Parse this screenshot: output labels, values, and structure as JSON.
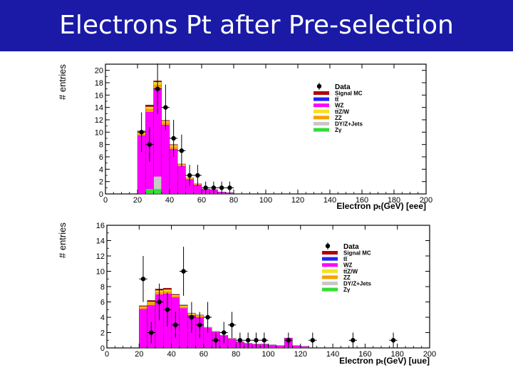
{
  "slide": {
    "title": "Electrons Pt after Pre-selection",
    "title_bg": "#1a1aa6"
  },
  "legend_entries": [
    {
      "label": "Signal MC",
      "color": "#b00000"
    },
    {
      "label": "tt̅",
      "color": "#2222ff"
    },
    {
      "label": "WZ",
      "color": "#ff00ff"
    },
    {
      "label": "tt̅Z/W",
      "color": "#f5e11e"
    },
    {
      "label": "ZZ",
      "color": "#f5a000"
    },
    {
      "label": "DY/Z+Jets",
      "color": "#c8c8c8"
    },
    {
      "label": "Zγ",
      "color": "#33dd33"
    }
  ],
  "chart_data": [
    {
      "type": "bar",
      "stacked": true,
      "ylabel": "# entries",
      "xlabel": "Electron pₜ(GeV) [eee]",
      "xlim": [
        0,
        200
      ],
      "ylim": [
        0,
        21
      ],
      "xticks": [
        0,
        20,
        40,
        60,
        80,
        100,
        120,
        140,
        160,
        180,
        200
      ],
      "yticks": [
        0,
        2,
        4,
        6,
        8,
        10,
        12,
        14,
        16,
        18,
        20
      ],
      "bin_width": 5,
      "bin_starts": [
        20,
        25,
        30,
        35,
        40,
        45,
        50,
        55,
        60,
        65,
        70,
        75,
        80
      ],
      "series": [
        {
          "name": "Zγ",
          "values": [
            0,
            0.8,
            0.8,
            0,
            0,
            0,
            0,
            0,
            0,
            0,
            0,
            0,
            0
          ]
        },
        {
          "name": "DY/Z+Jets",
          "values": [
            0,
            0,
            2,
            0,
            0,
            0,
            0,
            0,
            0,
            0,
            0,
            0,
            0
          ]
        },
        {
          "name": "WZ",
          "values": [
            9.5,
            12.5,
            14.3,
            11.2,
            7.3,
            4.5,
            2.4,
            1.5,
            0.8,
            0.7,
            0.3,
            0.2,
            0.05
          ]
        },
        {
          "name": "ZZ",
          "values": [
            0.3,
            0.5,
            0.6,
            0.4,
            0.4,
            0.2,
            0.1,
            0.1,
            0,
            0,
            0,
            0,
            0
          ]
        },
        {
          "name": "tt̅Z/W",
          "values": [
            0.3,
            0.3,
            0.4,
            0.2,
            0.2,
            0.1,
            0.1,
            0.05,
            0,
            0,
            0,
            0,
            0
          ]
        },
        {
          "name": "tt̅",
          "values": [
            0,
            0,
            0,
            0,
            0,
            0,
            0,
            0,
            0,
            0,
            0,
            0,
            0
          ]
        },
        {
          "name": "Signal MC",
          "values": [
            0.1,
            0.3,
            0.2,
            0.1,
            0.1,
            0.05,
            0,
            0,
            0,
            0,
            0,
            0,
            0
          ]
        }
      ],
      "data_points": [
        {
          "x": 22.5,
          "y": 10,
          "err": 3.2
        },
        {
          "x": 27.5,
          "y": 8,
          "err": 2.8
        },
        {
          "x": 32.5,
          "y": 17,
          "err": 4.1
        },
        {
          "x": 37.5,
          "y": 14,
          "err": 3.7
        },
        {
          "x": 42.5,
          "y": 9,
          "err": 3.0
        },
        {
          "x": 47.5,
          "y": 7,
          "err": 2.6
        },
        {
          "x": 52.5,
          "y": 3,
          "err": 1.7
        },
        {
          "x": 57.5,
          "y": 3,
          "err": 1.7
        },
        {
          "x": 62.5,
          "y": 1,
          "err": 1.0
        },
        {
          "x": 67.5,
          "y": 1,
          "err": 1.0
        },
        {
          "x": 72.5,
          "y": 1,
          "err": 1.0
        },
        {
          "x": 77.5,
          "y": 1,
          "err": 1.0
        }
      ]
    },
    {
      "type": "bar",
      "stacked": true,
      "ylabel": "# entries",
      "xlabel": "Electron pₜ(GeV) [uue]",
      "xlim": [
        0,
        200
      ],
      "ylim": [
        0,
        16
      ],
      "xticks": [
        0,
        20,
        40,
        60,
        80,
        100,
        120,
        140,
        160,
        180,
        200
      ],
      "yticks": [
        0,
        2,
        4,
        6,
        8,
        10,
        12,
        14,
        16
      ],
      "bin_width": 5,
      "bin_starts": [
        20,
        25,
        30,
        35,
        40,
        45,
        50,
        55,
        60,
        65,
        70,
        75,
        80,
        85,
        90,
        95,
        100,
        105,
        110,
        115,
        120
      ],
      "series": [
        {
          "name": "Zγ",
          "values": [
            0,
            0,
            0,
            0,
            0,
            0,
            0,
            0,
            0,
            0,
            0,
            0,
            0,
            0,
            0,
            0,
            0,
            0,
            0,
            0,
            0
          ]
        },
        {
          "name": "DY/Z+Jets",
          "values": [
            0,
            0,
            0,
            0,
            0,
            0,
            0,
            0,
            0,
            0,
            0,
            0,
            0,
            0,
            0,
            0,
            0,
            0,
            0,
            0,
            0
          ]
        },
        {
          "name": "WZ",
          "values": [
            5.1,
            5.6,
            7.0,
            7.1,
            6.6,
            5.2,
            4.3,
            4.0,
            2.6,
            2.1,
            1.6,
            1.2,
            0.8,
            0.6,
            0.5,
            0.5,
            0.4,
            0.3,
            1.3,
            0.3,
            0.2
          ]
        },
        {
          "name": "ZZ",
          "values": [
            0.2,
            0.3,
            0.3,
            0.3,
            0.2,
            0.2,
            0.1,
            0.2,
            0.1,
            0.05,
            0.05,
            0.05,
            0,
            0,
            0,
            0,
            0,
            0,
            0,
            0,
            0
          ]
        },
        {
          "name": "tt̅Z/W",
          "values": [
            0.1,
            0.1,
            0.2,
            0.2,
            0.1,
            0.1,
            0.1,
            0.05,
            0,
            0,
            0,
            0,
            0,
            0,
            0,
            0,
            0,
            0,
            0,
            0,
            0
          ]
        },
        {
          "name": "tt̅",
          "values": [
            0,
            0,
            0,
            0,
            0,
            0,
            0,
            0,
            0,
            0,
            0,
            0,
            0,
            0,
            0,
            0,
            0,
            0,
            0,
            0,
            0
          ]
        },
        {
          "name": "Signal MC",
          "values": [
            0.1,
            0.2,
            0.2,
            0.2,
            0.1,
            0.1,
            0.05,
            0.05,
            0,
            0,
            0,
            0,
            0,
            0,
            0,
            0,
            0,
            0,
            0,
            0,
            0
          ]
        }
      ],
      "data_points": [
        {
          "x": 22.5,
          "y": 9,
          "err": 3.0
        },
        {
          "x": 27.5,
          "y": 2,
          "err": 1.4
        },
        {
          "x": 32.5,
          "y": 6,
          "err": 2.4
        },
        {
          "x": 37.5,
          "y": 5,
          "err": 2.2
        },
        {
          "x": 42.5,
          "y": 3,
          "err": 1.7
        },
        {
          "x": 47.5,
          "y": 10,
          "err": 3.2
        },
        {
          "x": 52.5,
          "y": 4,
          "err": 2.0
        },
        {
          "x": 57.5,
          "y": 3,
          "err": 1.7
        },
        {
          "x": 62.5,
          "y": 4,
          "err": 2.0
        },
        {
          "x": 67.5,
          "y": 1,
          "err": 1.0
        },
        {
          "x": 72.5,
          "y": 2,
          "err": 1.4
        },
        {
          "x": 77.5,
          "y": 3,
          "err": 1.7
        },
        {
          "x": 82.5,
          "y": 1,
          "err": 1.0
        },
        {
          "x": 87.5,
          "y": 1,
          "err": 1.0
        },
        {
          "x": 92.5,
          "y": 1,
          "err": 1.0
        },
        {
          "x": 97.5,
          "y": 1,
          "err": 1.0
        },
        {
          "x": 112.5,
          "y": 1,
          "err": 1.0
        },
        {
          "x": 127.5,
          "y": 1,
          "err": 1.0
        },
        {
          "x": 152.5,
          "y": 1,
          "err": 1.0
        },
        {
          "x": 177.5,
          "y": 1,
          "err": 1.0
        }
      ]
    }
  ]
}
